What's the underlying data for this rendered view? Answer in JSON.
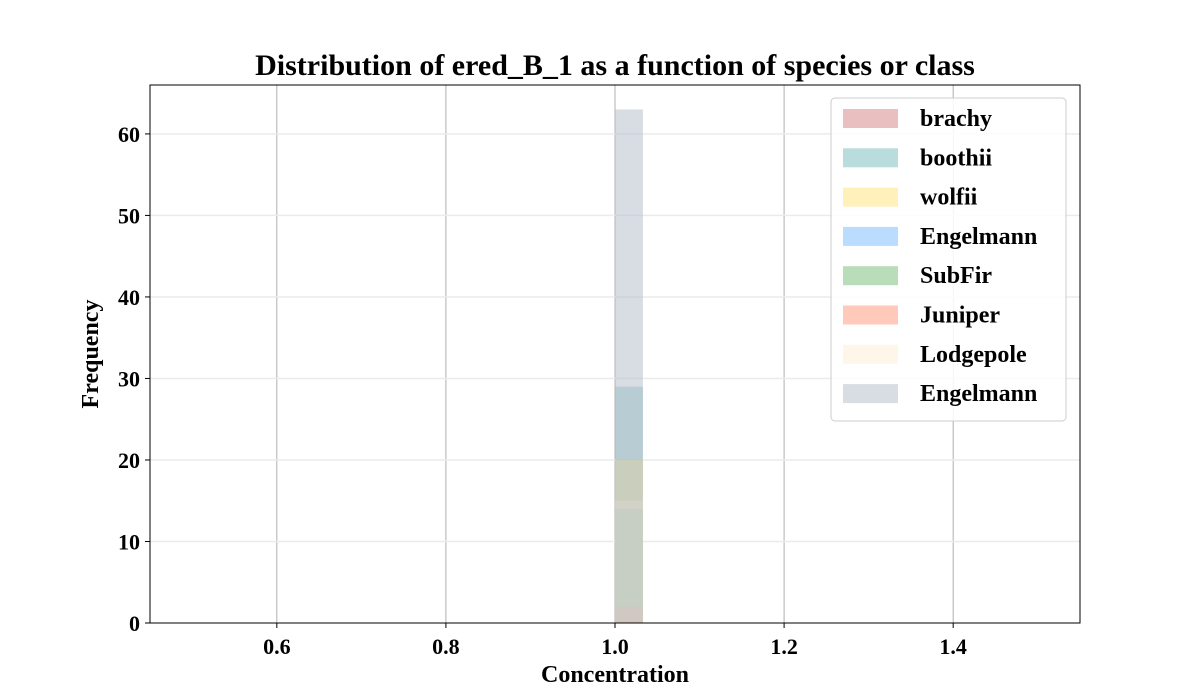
{
  "chart_data": {
    "type": "bar",
    "title": "Distribution of ered_B_1 as a function of species or class",
    "xlabel": "Concentration",
    "ylabel": "Frequency",
    "xlim": [
      0.45,
      1.55
    ],
    "ylim": [
      0,
      66
    ],
    "xticks": [
      0.6,
      0.8,
      1.0,
      1.2,
      1.4
    ],
    "xtick_labels": [
      "0.6",
      "0.8",
      "1.0",
      "1.2",
      "1.4"
    ],
    "yticks": [
      0,
      10,
      20,
      30,
      40,
      50,
      60
    ],
    "ytick_labels": [
      "0",
      "10",
      "20",
      "30",
      "40",
      "50",
      "60"
    ],
    "grid": true,
    "legend_position": "top-right",
    "bin": [
      1.0,
      1.033
    ],
    "series": [
      {
        "name": "brachy",
        "value": 1,
        "color": "#d98b8b"
      },
      {
        "name": "boothii",
        "value": 29,
        "color": "#7fbfbf"
      },
      {
        "name": "wolfii",
        "value": 20,
        "color": "#ffe680"
      },
      {
        "name": "Engelmann",
        "value": 0,
        "color": "#80bfff"
      },
      {
        "name": "SubFir",
        "value": 14,
        "color": "#80bf80"
      },
      {
        "name": "Juniper",
        "value": 2,
        "color": "#ff9f80"
      },
      {
        "name": "Lodgepole",
        "value": 15,
        "color": "#ffefd9"
      },
      {
        "name": "Engelmann",
        "value": 63,
        "color": "#b8bfcc"
      }
    ]
  }
}
